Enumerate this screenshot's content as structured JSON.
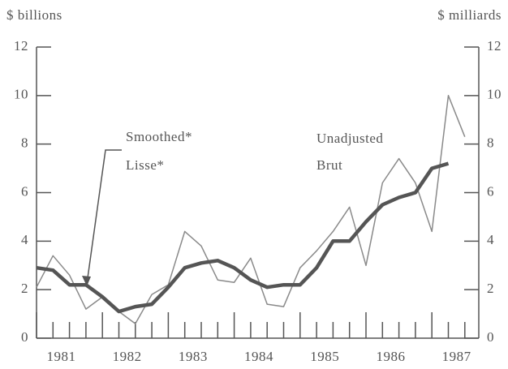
{
  "chart_data": {
    "type": "line",
    "y_label": "$ billions",
    "y2_label": "$ milliards",
    "categories": [
      "1981",
      null,
      null,
      null,
      "1982",
      null,
      null,
      null,
      "1983",
      null,
      null,
      null,
      "1984",
      null,
      null,
      null,
      "1985",
      null,
      null,
      null,
      "1986",
      null,
      null,
      null,
      "1987",
      null,
      null
    ],
    "series": [
      {
        "name": "Smoothed*",
        "name_fr": "Lisse*",
        "color": "#555555",
        "width": 4.5,
        "values": [
          2.9,
          2.8,
          2.2,
          2.2,
          1.7,
          1.1,
          1.3,
          1.4,
          2.1,
          2.9,
          3.1,
          3.2,
          2.9,
          2.4,
          2.1,
          2.2,
          2.2,
          2.9,
          4.0,
          4.0,
          4.8,
          5.5,
          5.8,
          6.0,
          7.0,
          7.2,
          null
        ]
      },
      {
        "name": "Unadjusted",
        "name_fr": "Brut",
        "color": "#8a8a8a",
        "width": 1.5,
        "values": [
          2.1,
          3.4,
          2.6,
          1.2,
          1.7,
          1.1,
          0.6,
          1.8,
          2.2,
          4.4,
          3.8,
          2.4,
          2.3,
          3.3,
          1.4,
          1.3,
          2.9,
          3.6,
          4.4,
          5.4,
          3.0,
          6.4,
          7.4,
          6.4,
          4.4,
          10.0,
          8.3
        ]
      }
    ],
    "ylim": [
      0,
      12
    ],
    "yticks": [
      0,
      2,
      4,
      6,
      8,
      10,
      12
    ],
    "y2lim": [
      0,
      12
    ],
    "y2ticks": [
      0,
      2,
      4,
      6,
      8,
      10,
      12
    ]
  }
}
